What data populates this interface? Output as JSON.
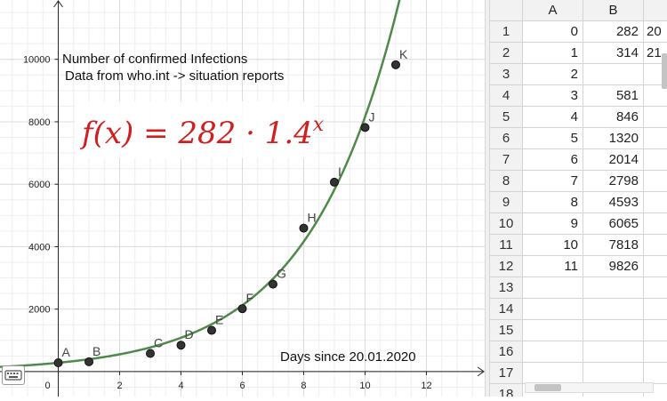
{
  "colors": {
    "curve": "#4f8a4a",
    "formula": "#d11f1f",
    "point": "#333333",
    "grid": "#dcdcdc"
  },
  "graphics": {
    "title_line1": "Number of confirmed Infections",
    "title_line2": "Data from who.int -> situation reports",
    "axis_annotation": "Days since 20.01.2020",
    "formula_label": "f(x) = 282 · 1.4^x"
  },
  "chart_data": {
    "type": "scatter",
    "title": "Number of confirmed Infections",
    "subtitle": "Data from who.int -> situation reports",
    "xlabel": "Days since 20.01.2020",
    "ylabel": "",
    "xlim": [
      -1.9,
      13.9
    ],
    "ylim": [
      -800,
      11900
    ],
    "x_ticks": [
      0,
      2,
      4,
      6,
      8,
      10,
      12
    ],
    "y_ticks": [
      2000,
      4000,
      6000,
      8000,
      10000
    ],
    "grid": true,
    "points": [
      {
        "label": "A",
        "x": 0,
        "y": 282
      },
      {
        "label": "B",
        "x": 1,
        "y": 314
      },
      {
        "label": "C",
        "x": 3,
        "y": 581
      },
      {
        "label": "D",
        "x": 4,
        "y": 846
      },
      {
        "label": "E",
        "x": 5,
        "y": 1320
      },
      {
        "label": "F",
        "x": 6,
        "y": 2014
      },
      {
        "label": "G",
        "x": 7,
        "y": 2798
      },
      {
        "label": "H",
        "x": 8,
        "y": 4593
      },
      {
        "label": "I",
        "x": 9,
        "y": 6065
      },
      {
        "label": "J",
        "x": 10,
        "y": 7818
      },
      {
        "label": "K",
        "x": 11,
        "y": 9826
      }
    ],
    "curve": {
      "a": 282,
      "b": 1.4,
      "label": "f(x) = 282 · 1.4^x"
    }
  },
  "spreadsheet": {
    "columns": [
      "A",
      "B"
    ],
    "rows": [
      {
        "n": "1",
        "a": "0",
        "b": "282",
        "c": "20"
      },
      {
        "n": "2",
        "a": "1",
        "b": "314",
        "c": "21"
      },
      {
        "n": "3",
        "a": "2",
        "b": "",
        "c": ""
      },
      {
        "n": "4",
        "a": "3",
        "b": "581",
        "c": ""
      },
      {
        "n": "5",
        "a": "4",
        "b": "846",
        "c": ""
      },
      {
        "n": "6",
        "a": "5",
        "b": "1320",
        "c": ""
      },
      {
        "n": "7",
        "a": "6",
        "b": "2014",
        "c": ""
      },
      {
        "n": "8",
        "a": "7",
        "b": "2798",
        "c": ""
      },
      {
        "n": "9",
        "a": "8",
        "b": "4593",
        "c": ""
      },
      {
        "n": "10",
        "a": "9",
        "b": "6065",
        "c": ""
      },
      {
        "n": "11",
        "a": "10",
        "b": "7818",
        "c": ""
      },
      {
        "n": "12",
        "a": "11",
        "b": "9826",
        "c": ""
      },
      {
        "n": "13",
        "a": "",
        "b": "",
        "c": ""
      },
      {
        "n": "14",
        "a": "",
        "b": "",
        "c": ""
      },
      {
        "n": "15",
        "a": "",
        "b": "",
        "c": ""
      },
      {
        "n": "16",
        "a": "",
        "b": "",
        "c": ""
      },
      {
        "n": "17",
        "a": "",
        "b": "",
        "c": ""
      },
      {
        "n": "18",
        "a": "",
        "b": "",
        "c": ""
      }
    ]
  },
  "icons": {
    "keyboard": "keyboard-icon",
    "scroll_left": "arrow-left-icon"
  }
}
